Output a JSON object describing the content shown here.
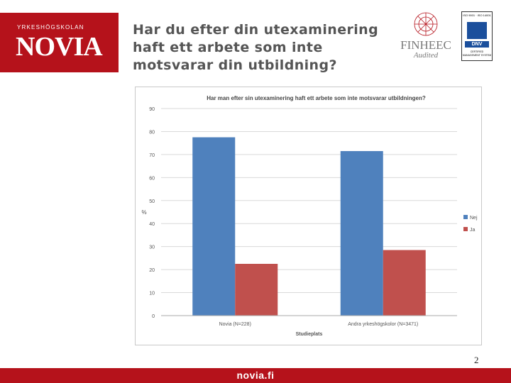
{
  "logo": {
    "small": "YRKESHÖGSKOLAN",
    "big": "NOVIA"
  },
  "slide": {
    "title_lines": [
      "Har du efter din utexaminering",
      "haft ett arbete som inte",
      "motsvarar din utbildning?"
    ],
    "page_number": "2",
    "footer": "novia.fi"
  },
  "badges": {
    "finheec": "FINHEEC",
    "finheec_sub": "Audited",
    "dnv_top": "ISO 9001 · ISO 14001",
    "dnv_word": "DNV",
    "dnv_bottom": "CERTIFIED MANAGEMENT SYSTEM"
  },
  "colors": {
    "brand": "#b5121b",
    "nej": "#4f81bd",
    "ja": "#c0504d"
  },
  "chart_data": {
    "type": "bar",
    "title": "Har man efter sin utexaminering haft ett arbete som inte motsvarar utbildningen?",
    "xlabel": "Studieplats",
    "ylabel": "%",
    "ylim": [
      0,
      90
    ],
    "yticks": [
      0,
      10,
      20,
      30,
      40,
      50,
      60,
      70,
      80,
      90
    ],
    "grid": true,
    "legend": "right",
    "categories": [
      "Novia (N=228)",
      "Andra yrkeshögskolor (N=3471)"
    ],
    "series": [
      {
        "name": "Nej",
        "values": [
          77.5,
          71.5
        ],
        "color": "#4f81bd"
      },
      {
        "name": "Ja",
        "values": [
          22.5,
          28.5
        ],
        "color": "#c0504d"
      }
    ]
  }
}
